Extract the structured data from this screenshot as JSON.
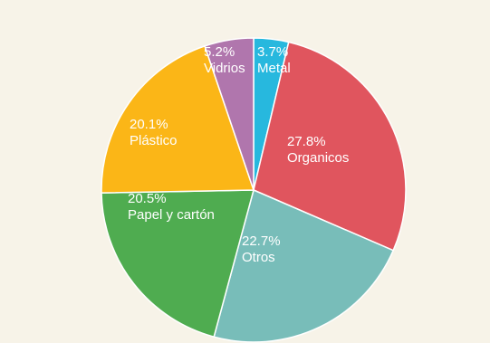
{
  "chart_data": {
    "type": "pie",
    "start_angle_deg": 0,
    "direction": "clockwise",
    "slices": [
      {
        "name": "Metal",
        "percent_label": "3.7%",
        "value": 3.7,
        "color": "#27b8de"
      },
      {
        "name": "Organicos",
        "percent_label": "27.8%",
        "value": 27.8,
        "color": "#e0555e"
      },
      {
        "name": "Otros",
        "percent_label": "22.7%",
        "value": 22.7,
        "color": "#78bdb9"
      },
      {
        "name": "Papel y cartón",
        "percent_label": "20.5%",
        "value": 20.5,
        "color": "#4fac50"
      },
      {
        "name": "Plástico",
        "percent_label": "20.1%",
        "value": 20.1,
        "color": "#fbb617"
      },
      {
        "name": "Vidrios",
        "percent_label": "5.2%",
        "value": 5.2,
        "color": "#b076ad"
      }
    ]
  }
}
